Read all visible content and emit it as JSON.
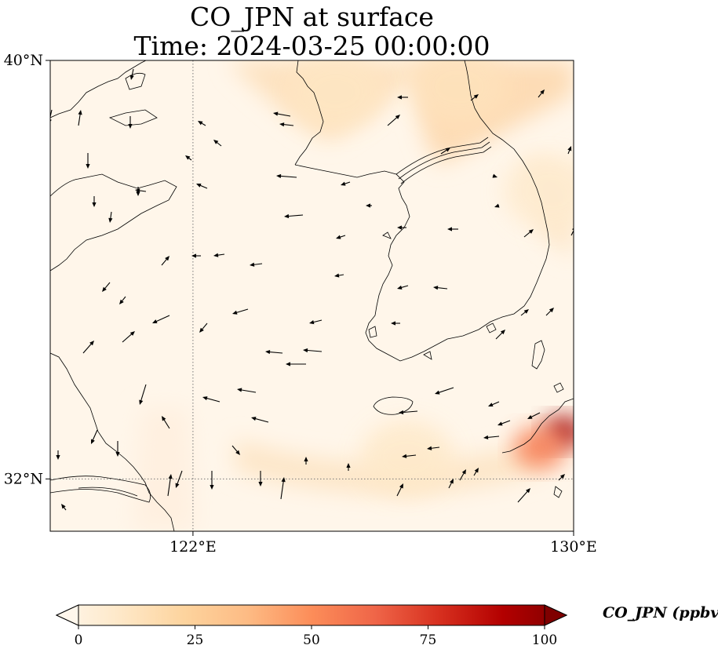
{
  "title": {
    "line1": "CO_JPN at surface",
    "line2": "Time: 2024-03-25 00:00:00"
  },
  "map": {
    "projection": "PlateCarree",
    "extent": {
      "lon": [
        119,
        130
      ],
      "lat": [
        31,
        40
      ]
    },
    "gridlines": {
      "style": "dotted",
      "lon": [
        122
      ],
      "lat": [
        32
      ]
    },
    "lon_ticks": [
      {
        "value": 122,
        "label": "122°E"
      },
      {
        "value": 130,
        "label": "130°E"
      }
    ],
    "lat_ticks": [
      {
        "value": 40,
        "label": "40°N"
      },
      {
        "value": 32,
        "label": "32°N"
      }
    ],
    "features": [
      "coastlines",
      "wind-vectors",
      "CO concentration field"
    ]
  },
  "colorbar": {
    "label": "CO_JPN (ppbv)",
    "colormap": "OrRd",
    "range": [
      0,
      100
    ],
    "extend": "both",
    "ticks": [
      {
        "value": 0,
        "label": "0"
      },
      {
        "value": 25,
        "label": "25"
      },
      {
        "value": 50,
        "label": "50"
      },
      {
        "value": 75,
        "label": "75"
      },
      {
        "value": 100,
        "label": "100"
      }
    ],
    "colors": [
      "#fff7ec",
      "#fee8c8",
      "#fdd49e",
      "#fdbb84",
      "#fc8d59",
      "#ef6548",
      "#d7301f",
      "#b30000",
      "#7f0000"
    ]
  },
  "concentration_field": [
    {
      "name": "northwest-plume",
      "lon": 125.0,
      "lat": 39.4,
      "ppbv": 14
    },
    {
      "name": "northeast-plume",
      "lon": 127.6,
      "lat": 39.5,
      "ppbv": 16
    },
    {
      "name": "southern-band",
      "lon": 126.5,
      "lat": 32.4,
      "ppbv": 12
    },
    {
      "name": "kyushu-hotspot",
      "lon": 129.8,
      "lat": 32.9,
      "ppbv": 92
    },
    {
      "name": "kyushu-edge",
      "lon": 129.3,
      "lat": 32.6,
      "ppbv": 55
    },
    {
      "name": "east-coast-band",
      "lon": 129.5,
      "lat": 37.5,
      "ppbv": 10
    }
  ]
}
